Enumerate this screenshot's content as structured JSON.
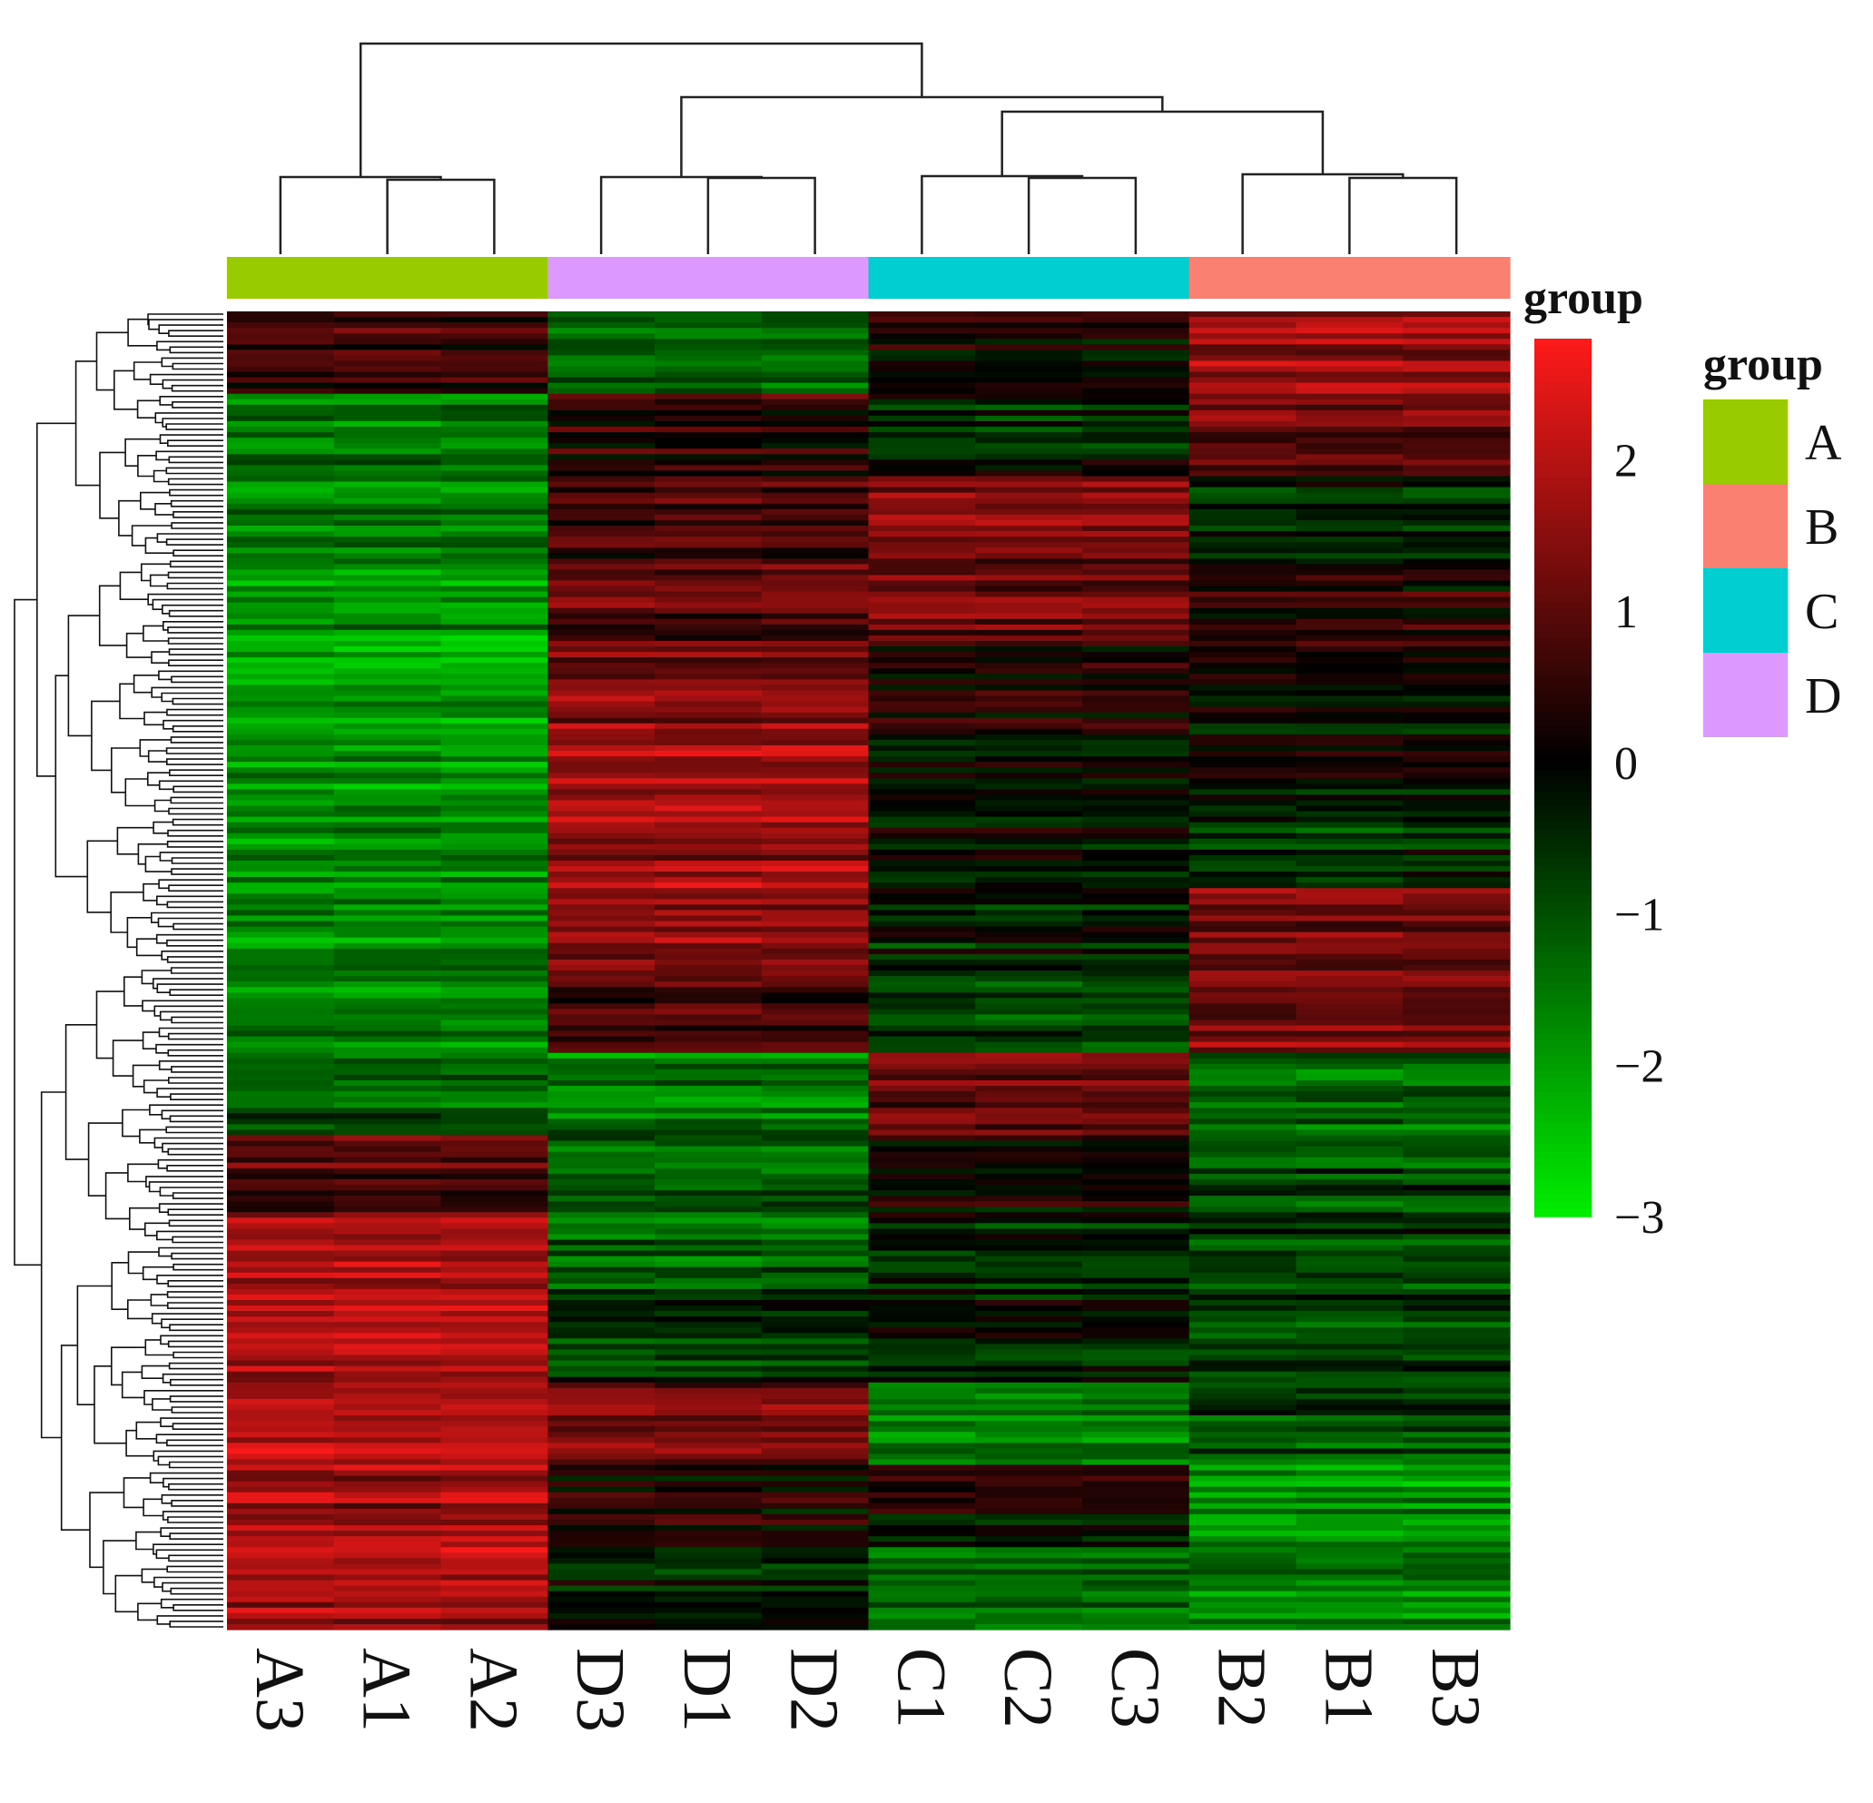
{
  "chart_data": {
    "type": "heatmap",
    "title": "",
    "xlabel": "",
    "ylabel": "",
    "columns": [
      "A3",
      "A1",
      "A2",
      "D3",
      "D1",
      "D2",
      "C1",
      "C2",
      "C3",
      "B2",
      "B1",
      "B3"
    ],
    "column_groups": [
      "A",
      "A",
      "A",
      "D",
      "D",
      "D",
      "C",
      "C",
      "C",
      "B",
      "B",
      "B"
    ],
    "row_dendrogram": true,
    "column_dendrogram": true,
    "row_pattern_description_values": {
      "A": [
        0.5,
        -1.5,
        -1.6,
        -1.8,
        -2.0,
        -1.9,
        -1.8,
        -1.7,
        -1.7,
        -1.2,
        1.0,
        1.8,
        2.0,
        1.9,
        1.7,
        1.8
      ],
      "D": [
        -1.2,
        0.5,
        0.8,
        1.0,
        1.5,
        1.8,
        1.7,
        1.6,
        0.6,
        -1.5,
        -1.0,
        -1.2,
        -0.8,
        1.2,
        0.2,
        -0.3
      ],
      "C": [
        0.2,
        -0.3,
        1.4,
        1.2,
        0.2,
        0.0,
        -0.2,
        -0.5,
        -1.0,
        1.0,
        0.2,
        -0.5,
        -0.3,
        -1.6,
        0.1,
        -1.2
      ],
      "B": [
        1.6,
        1.2,
        -0.5,
        0.3,
        0.1,
        -0.2,
        -0.6,
        1.2,
        1.4,
        -1.2,
        -0.9,
        -0.8,
        -0.9,
        -1.0,
        -1.8,
        -1.6
      ]
    },
    "colorbar": {
      "title": "group",
      "ticks": [
        "2",
        "1",
        "0",
        "−1",
        "−2",
        "−3"
      ],
      "tick_values": [
        2,
        1,
        0,
        -1,
        -2,
        -3
      ],
      "range": [
        -3,
        2.8
      ],
      "colors": {
        "low": "#00ee00",
        "mid": "#000000",
        "high": "#ff1a1a"
      }
    },
    "legend": {
      "title": "group",
      "placement": "right",
      "entries": [
        {
          "label": "A",
          "color": "#99cc00"
        },
        {
          "label": "B",
          "color": "#fa8072"
        },
        {
          "label": "C",
          "color": "#00ced1"
        },
        {
          "label": "D",
          "color": "#dd99ff"
        }
      ]
    }
  }
}
